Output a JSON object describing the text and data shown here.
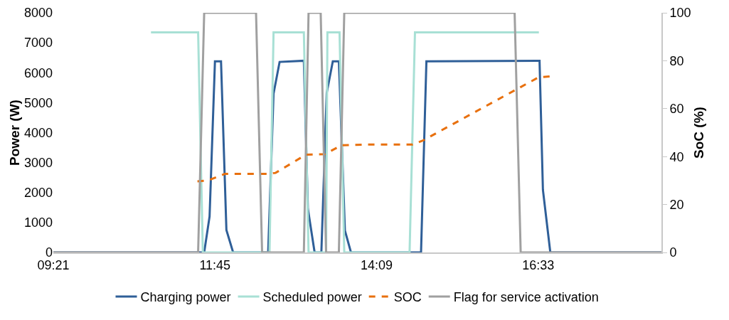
{
  "chart_data": {
    "type": "line",
    "ylabel": "Power (W)",
    "y2label": "SoC (%)",
    "xlim": [
      9.35,
      18.38
    ],
    "xticks": [
      {
        "value": 9.35,
        "label": "09:21"
      },
      {
        "value": 11.75,
        "label": "11:45"
      },
      {
        "value": 14.15,
        "label": "14:09"
      },
      {
        "value": 16.55,
        "label": "16:33"
      }
    ],
    "ylim": [
      0,
      8000
    ],
    "yticks": [
      0,
      1000,
      2000,
      3000,
      4000,
      5000,
      6000,
      7000,
      8000
    ],
    "y2lim": [
      0,
      100
    ],
    "y2ticks": [
      0,
      20,
      40,
      60,
      80,
      100
    ],
    "grid": false,
    "legend": "bottom",
    "marker": "none",
    "series": [
      {
        "name": "Charging power",
        "color": "#2f5f98",
        "line_style": "solid",
        "x": [
          9.35,
          11.59,
          11.67,
          11.75,
          11.84,
          11.92,
          12.02,
          12.54,
          12.62,
          12.71,
          13.07,
          13.13,
          13.23,
          13.33,
          13.41,
          13.5,
          13.59,
          13.68,
          13.77,
          14.81,
          14.89,
          16.55,
          16.57,
          16.62,
          16.73,
          18.38
        ],
        "values": [
          0,
          0,
          1200,
          6380,
          6380,
          750,
          0,
          0,
          5300,
          6360,
          6400,
          1460,
          0,
          0,
          5330,
          6380,
          6380,
          730,
          0,
          0,
          6380,
          6400,
          6400,
          2090,
          0,
          0
        ]
      },
      {
        "name": "Scheduled power",
        "color": "#a8e0d5",
        "line_style": "solid",
        "x": [
          10.8,
          11.5,
          11.57,
          12.56,
          12.62,
          13.07,
          13.14,
          13.4,
          13.42,
          13.6,
          13.67,
          14.64,
          14.72,
          16.56
        ],
        "values": [
          7350,
          7350,
          0,
          0,
          7350,
          7350,
          0,
          0,
          7350,
          7350,
          0,
          0,
          7350,
          7350
        ]
      },
      {
        "name": "SOC",
        "color": "#e8700e",
        "line_style": "dashed",
        "axis": "y2",
        "x": [
          11.49,
          11.64,
          11.9,
          12.54,
          12.65,
          13.1,
          13.38,
          13.63,
          13.96,
          14.68,
          14.83,
          16.55,
          16.74
        ],
        "values": [
          29.7,
          30,
          32.8,
          32.8,
          33.2,
          40.8,
          41,
          44.7,
          45,
          45,
          46.6,
          73,
          73.5
        ]
      },
      {
        "name": "Flag for service activation",
        "color": "#a0a0a0",
        "line_style": "solid",
        "axis": "y2",
        "x": [
          9.35,
          11.5,
          11.59,
          12.36,
          12.45,
          13.07,
          13.14,
          13.32,
          13.4,
          13.59,
          13.67,
          16.2,
          16.29,
          18.38
        ],
        "values": [
          0,
          0,
          100,
          100,
          0,
          0,
          100,
          100,
          0,
          0,
          100,
          100,
          0,
          0
        ]
      }
    ]
  }
}
